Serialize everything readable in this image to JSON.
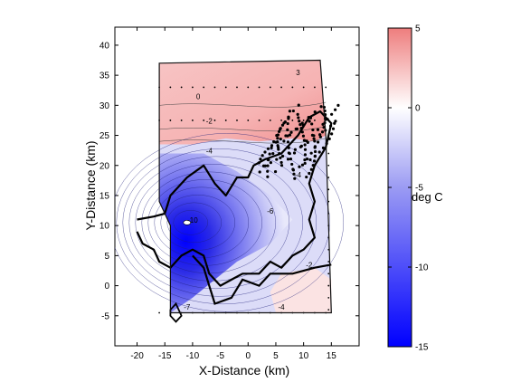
{
  "chart_data": {
    "type": "heatmap",
    "title": "",
    "xlabel": "X-Distance (km)",
    "ylabel": "Y-Distance (km)",
    "xlim": [
      -24,
      20
    ],
    "ylim": [
      -10,
      43
    ],
    "x_ticks": [
      -20,
      -15,
      -10,
      -5,
      0,
      5,
      10,
      15
    ],
    "y_ticks": [
      -5,
      0,
      5,
      10,
      15,
      20,
      25,
      30,
      35,
      40
    ],
    "colorbar": {
      "label": "deg C",
      "range": [
        -15,
        5
      ],
      "ticks": [
        5,
        0,
        -5,
        -10,
        -15
      ],
      "colors": {
        "warm": "#f08a8a",
        "neutral": "#ffffff",
        "cold": "#0000ff"
      }
    },
    "grid": false,
    "domain_outline": [
      [
        -16,
        37
      ],
      [
        13,
        37.5
      ],
      [
        14,
        25
      ],
      [
        15,
        -4.5
      ],
      [
        -14,
        -4.5
      ],
      [
        -14,
        10
      ],
      [
        -16,
        14
      ],
      [
        -16,
        37
      ]
    ],
    "field_samples": [
      {
        "x": 8,
        "y": 35,
        "value": 3
      },
      {
        "x": -5,
        "y": 35,
        "value": 0
      },
      {
        "x": 2,
        "y": 28,
        "value": 2
      },
      {
        "x": -12,
        "y": 28,
        "value": 0
      },
      {
        "x": -10,
        "y": 20,
        "value": -4
      },
      {
        "x": -11,
        "y": 11,
        "value": -15
      },
      {
        "x": -6,
        "y": 10,
        "value": -10
      },
      {
        "x": 2,
        "y": 10,
        "value": -5
      },
      {
        "x": 10,
        "y": 10,
        "value": -2
      },
      {
        "x": -10,
        "y": 0,
        "value": -5
      },
      {
        "x": 8,
        "y": 0,
        "value": 0
      }
    ],
    "contour_labels": [
      {
        "x": 9,
        "y": 35,
        "text": "3"
      },
      {
        "x": -9,
        "y": 31,
        "text": "0"
      },
      {
        "x": -7,
        "y": 27,
        "text": "-2"
      },
      {
        "x": -7,
        "y": 22,
        "text": "-4"
      },
      {
        "x": -10,
        "y": 10.5,
        "text": "-10"
      },
      {
        "x": 4,
        "y": 12,
        "text": "-6"
      },
      {
        "x": 9,
        "y": 18,
        "text": "-4"
      },
      {
        "x": 11,
        "y": 3,
        "text": "-2"
      },
      {
        "x": -11,
        "y": -4,
        "text": "-7"
      },
      {
        "x": 6,
        "y": -4,
        "text": "-4"
      }
    ]
  }
}
